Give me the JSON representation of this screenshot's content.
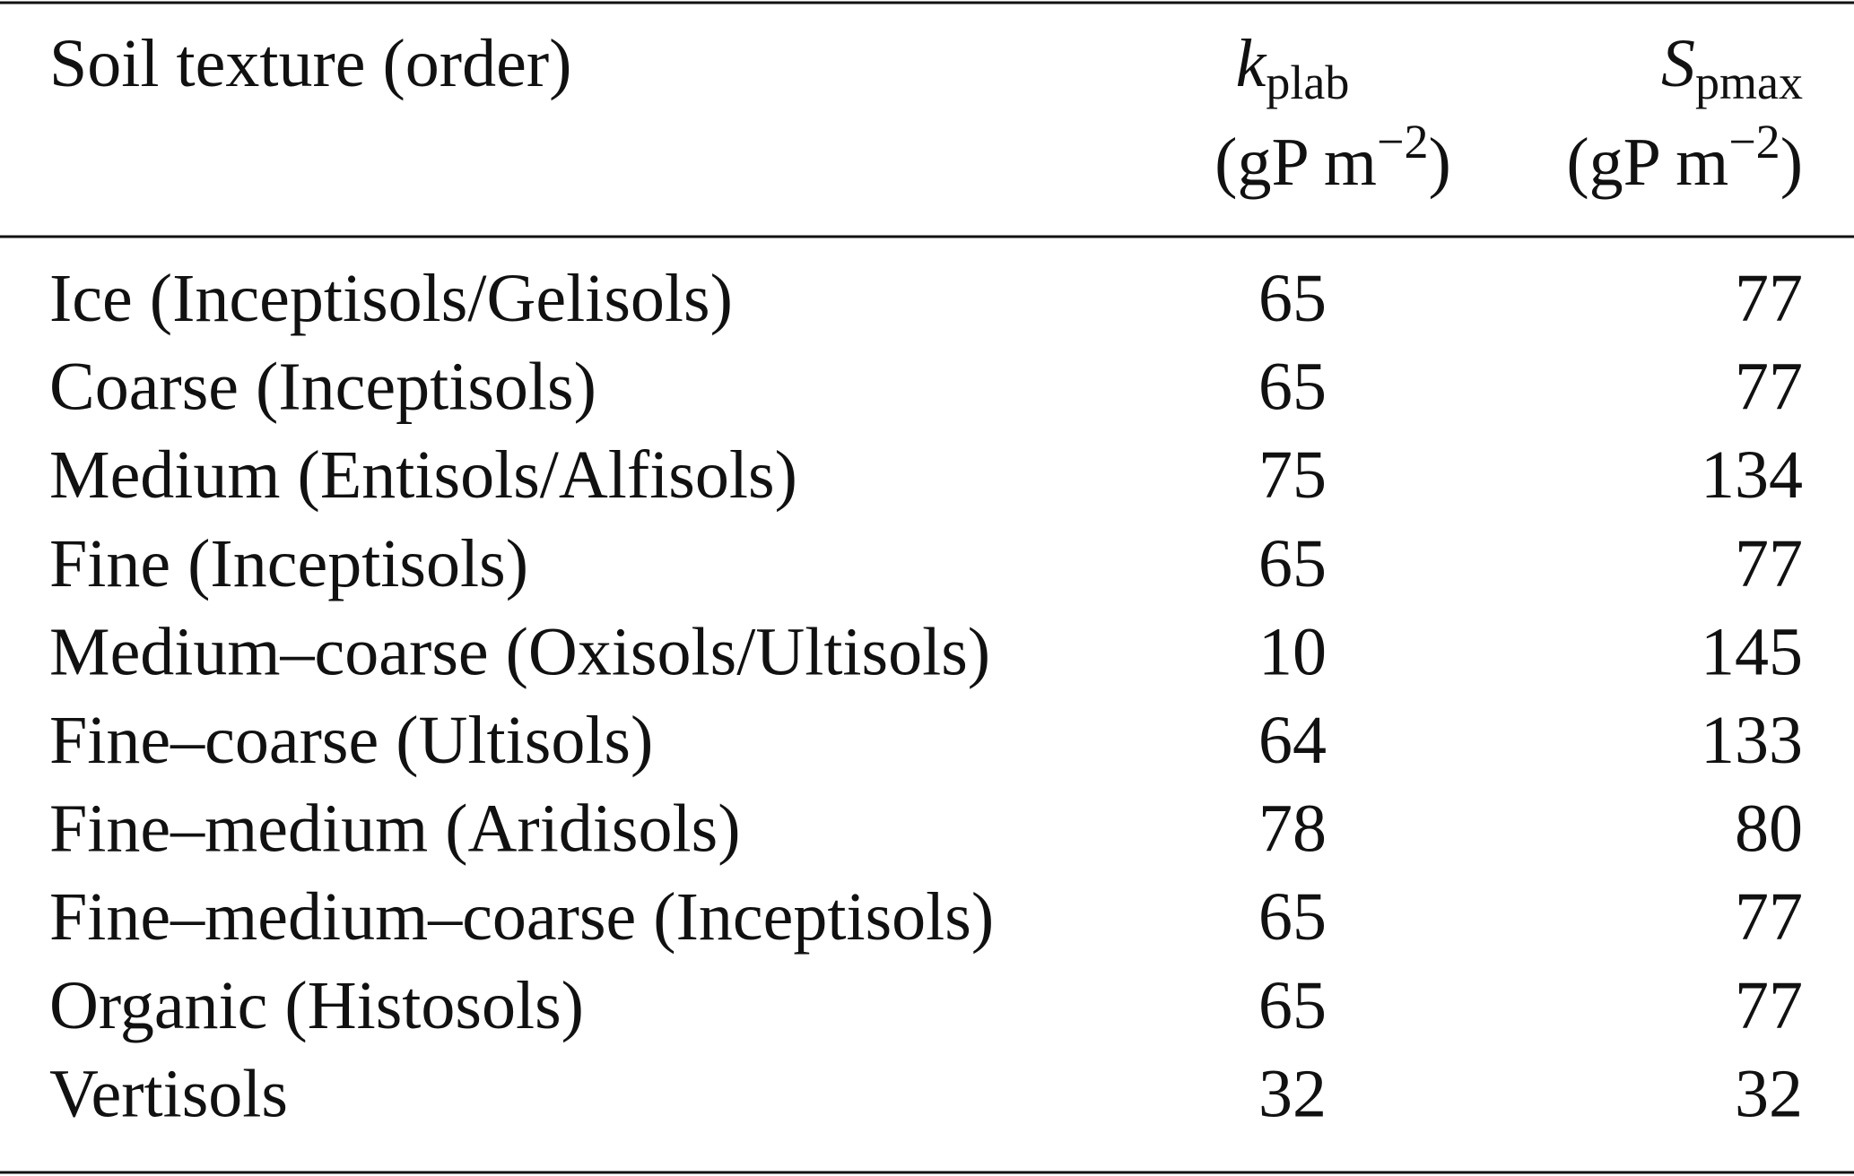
{
  "table": {
    "header": [
      "Soil texture (order)",
      {
        "symbol": "k",
        "subscript": "plab",
        "unit": [
          "(gP m",
          "−2",
          ")"
        ]
      },
      {
        "symbol": "S",
        "subscript": "pmax",
        "unit": [
          "(gP m",
          "−2",
          ")"
        ]
      }
    ],
    "rows": [
      [
        "Ice (Inceptisols/Gelisols)",
        65,
        77
      ],
      [
        "Coarse (Inceptisols)",
        65,
        77
      ],
      [
        "Medium (Entisols/Alfisols)",
        75,
        134
      ],
      [
        "Fine (Inceptisols)",
        65,
        77
      ],
      [
        "Medium–coarse (Oxisols/Ultisols)",
        10,
        145
      ],
      [
        "Fine–coarse (Ultisols)",
        64,
        133
      ],
      [
        "Fine–medium (Aridisols)",
        78,
        80
      ],
      [
        "Fine–medium–coarse (Inceptisols)",
        65,
        77
      ],
      [
        "Organic (Histosols)",
        65,
        77
      ],
      [
        "Vertisols",
        32,
        32
      ]
    ]
  }
}
